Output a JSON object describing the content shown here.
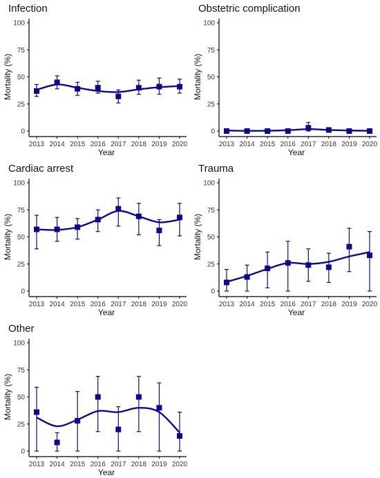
{
  "colors": {
    "series": "#0a0a8a",
    "axis": "#000000",
    "tick_text": "#333333"
  },
  "chart_data": [
    {
      "type": "line",
      "title": "Infection",
      "xlabel": "Year",
      "ylabel": "Mortality (%)",
      "x": [
        "2013",
        "2014",
        "2015",
        "2016",
        "2017",
        "2018",
        "2019",
        "2020"
      ],
      "y_ticks": [
        "0",
        "25",
        "50",
        "75",
        "100"
      ],
      "ylim": [
        0,
        100
      ],
      "grid": false,
      "series": [
        {
          "values": [
            37,
            45,
            39,
            40,
            32,
            40,
            41,
            41
          ],
          "err_low": [
            32,
            39,
            33,
            35,
            26,
            34,
            34,
            35
          ],
          "err_high": [
            43,
            51,
            45,
            46,
            38,
            47,
            49,
            48
          ],
          "smooth": [
            38,
            43,
            40,
            37,
            36,
            38.5,
            40.5,
            41.5
          ]
        }
      ]
    },
    {
      "type": "line",
      "title": "Obstetric complication",
      "xlabel": "Year",
      "ylabel": "Mortality (%)",
      "x": [
        "2013",
        "2014",
        "2015",
        "2016",
        "2017",
        "2018",
        "2019",
        "2020"
      ],
      "y_ticks": [
        "0",
        "25",
        "50",
        "75",
        "100"
      ],
      "ylim": [
        0,
        100
      ],
      "grid": false,
      "series": [
        {
          "values": [
            0,
            0,
            0,
            0,
            3,
            1,
            0,
            0
          ],
          "err_low": [
            0,
            0,
            0,
            0,
            0,
            0,
            0,
            0
          ],
          "err_high": [
            1,
            1,
            1,
            1,
            8,
            2,
            1,
            1
          ],
          "smooth": [
            0.5,
            0.2,
            0.3,
            0.8,
            1.8,
            1.0,
            0.5,
            0.3
          ]
        }
      ]
    },
    {
      "type": "line",
      "title": "Cardiac arrest",
      "xlabel": "Year",
      "ylabel": "Mortality (%)",
      "x": [
        "2013",
        "2014",
        "2015",
        "2016",
        "2017",
        "2018",
        "2019",
        "2020"
      ],
      "y_ticks": [
        "0",
        "25",
        "50",
        "75",
        "100"
      ],
      "ylim": [
        0,
        100
      ],
      "grid": false,
      "series": [
        {
          "values": [
            57,
            57,
            59,
            66,
            76,
            69,
            56,
            68
          ],
          "err_low": [
            39,
            46,
            48,
            55,
            60,
            52,
            42,
            51
          ],
          "err_high": [
            70,
            68,
            67,
            75,
            86,
            81,
            66,
            81
          ],
          "smooth": [
            57,
            56.5,
            59,
            66,
            74,
            69,
            63.5,
            66
          ]
        }
      ]
    },
    {
      "type": "line",
      "title": "Trauma",
      "xlabel": "Year",
      "ylabel": "Mortality (%)",
      "x": [
        "2013",
        "2014",
        "2015",
        "2016",
        "2017",
        "2018",
        "2019",
        "2020"
      ],
      "y_ticks": [
        "0",
        "25",
        "50",
        "75",
        "100"
      ],
      "ylim": [
        0,
        100
      ],
      "grid": false,
      "series": [
        {
          "values": [
            8,
            13,
            21,
            26,
            24,
            22,
            41,
            33
          ],
          "err_low": [
            0,
            0,
            3,
            0,
            9,
            8,
            18,
            0
          ],
          "err_high": [
            20,
            24,
            36,
            46,
            39,
            35,
            58,
            55
          ],
          "smooth": [
            8.5,
            14,
            20.5,
            26,
            25,
            27,
            32,
            36
          ]
        }
      ]
    },
    {
      "type": "line",
      "title": "Other",
      "xlabel": "Year",
      "ylabel": "Mortality (%)",
      "x": [
        "2013",
        "2014",
        "2015",
        "2016",
        "2017",
        "2018",
        "2019",
        "2020"
      ],
      "y_ticks": [
        "0",
        "25",
        "50",
        "75",
        "100"
      ],
      "ylim": [
        0,
        100
      ],
      "grid": false,
      "series": [
        {
          "values": [
            36,
            8,
            28,
            50,
            20,
            50,
            40,
            14
          ],
          "err_low": [
            0,
            0,
            0,
            18,
            0,
            18,
            0,
            0
          ],
          "err_high": [
            59,
            17,
            55,
            69,
            41,
            69,
            63,
            36
          ],
          "smooth": [
            31,
            23,
            29,
            37,
            36,
            40,
            36,
            17
          ]
        }
      ]
    }
  ]
}
